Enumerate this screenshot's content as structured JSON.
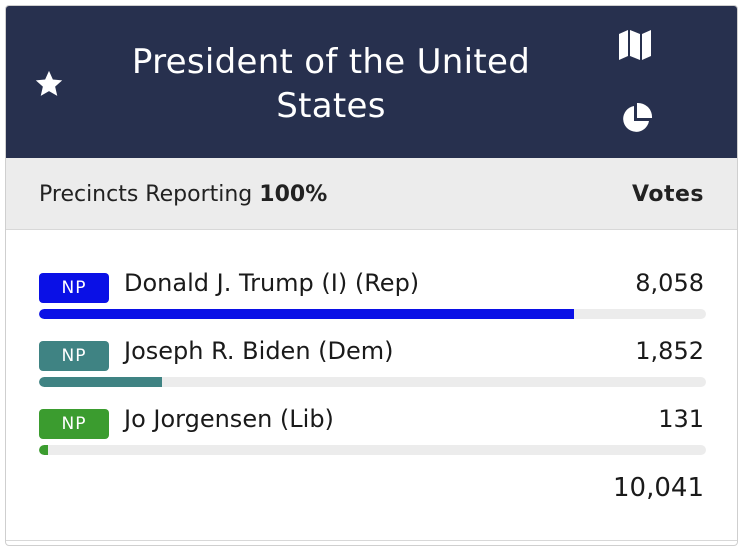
{
  "race": {
    "title": "President of the United States"
  },
  "summary": {
    "precincts_label": "Precincts Reporting",
    "precincts_value": "100%",
    "votes_header": "Votes"
  },
  "candidates": [
    {
      "party_badge": "NP",
      "name": "Donald J. Trump (I) (Rep)",
      "votes": "8,058",
      "share": 0.8025,
      "color": "#0a10e6"
    },
    {
      "party_badge": "NP",
      "name": "Joseph R. Biden (Dem)",
      "votes": "1,852",
      "share": 0.1844,
      "color": "#3f8383"
    },
    {
      "party_badge": "NP",
      "name": "Jo Jorgensen (Lib)",
      "votes": "131",
      "share": 0.013,
      "color": "#3b9c2f"
    }
  ],
  "total_votes": "10,041",
  "icons": {
    "favorite": "star-icon",
    "map": "map-icon",
    "chart": "pie-chart-icon"
  },
  "colors": {
    "header_bg": "#27304e",
    "subhead_bg": "#ececec"
  }
}
